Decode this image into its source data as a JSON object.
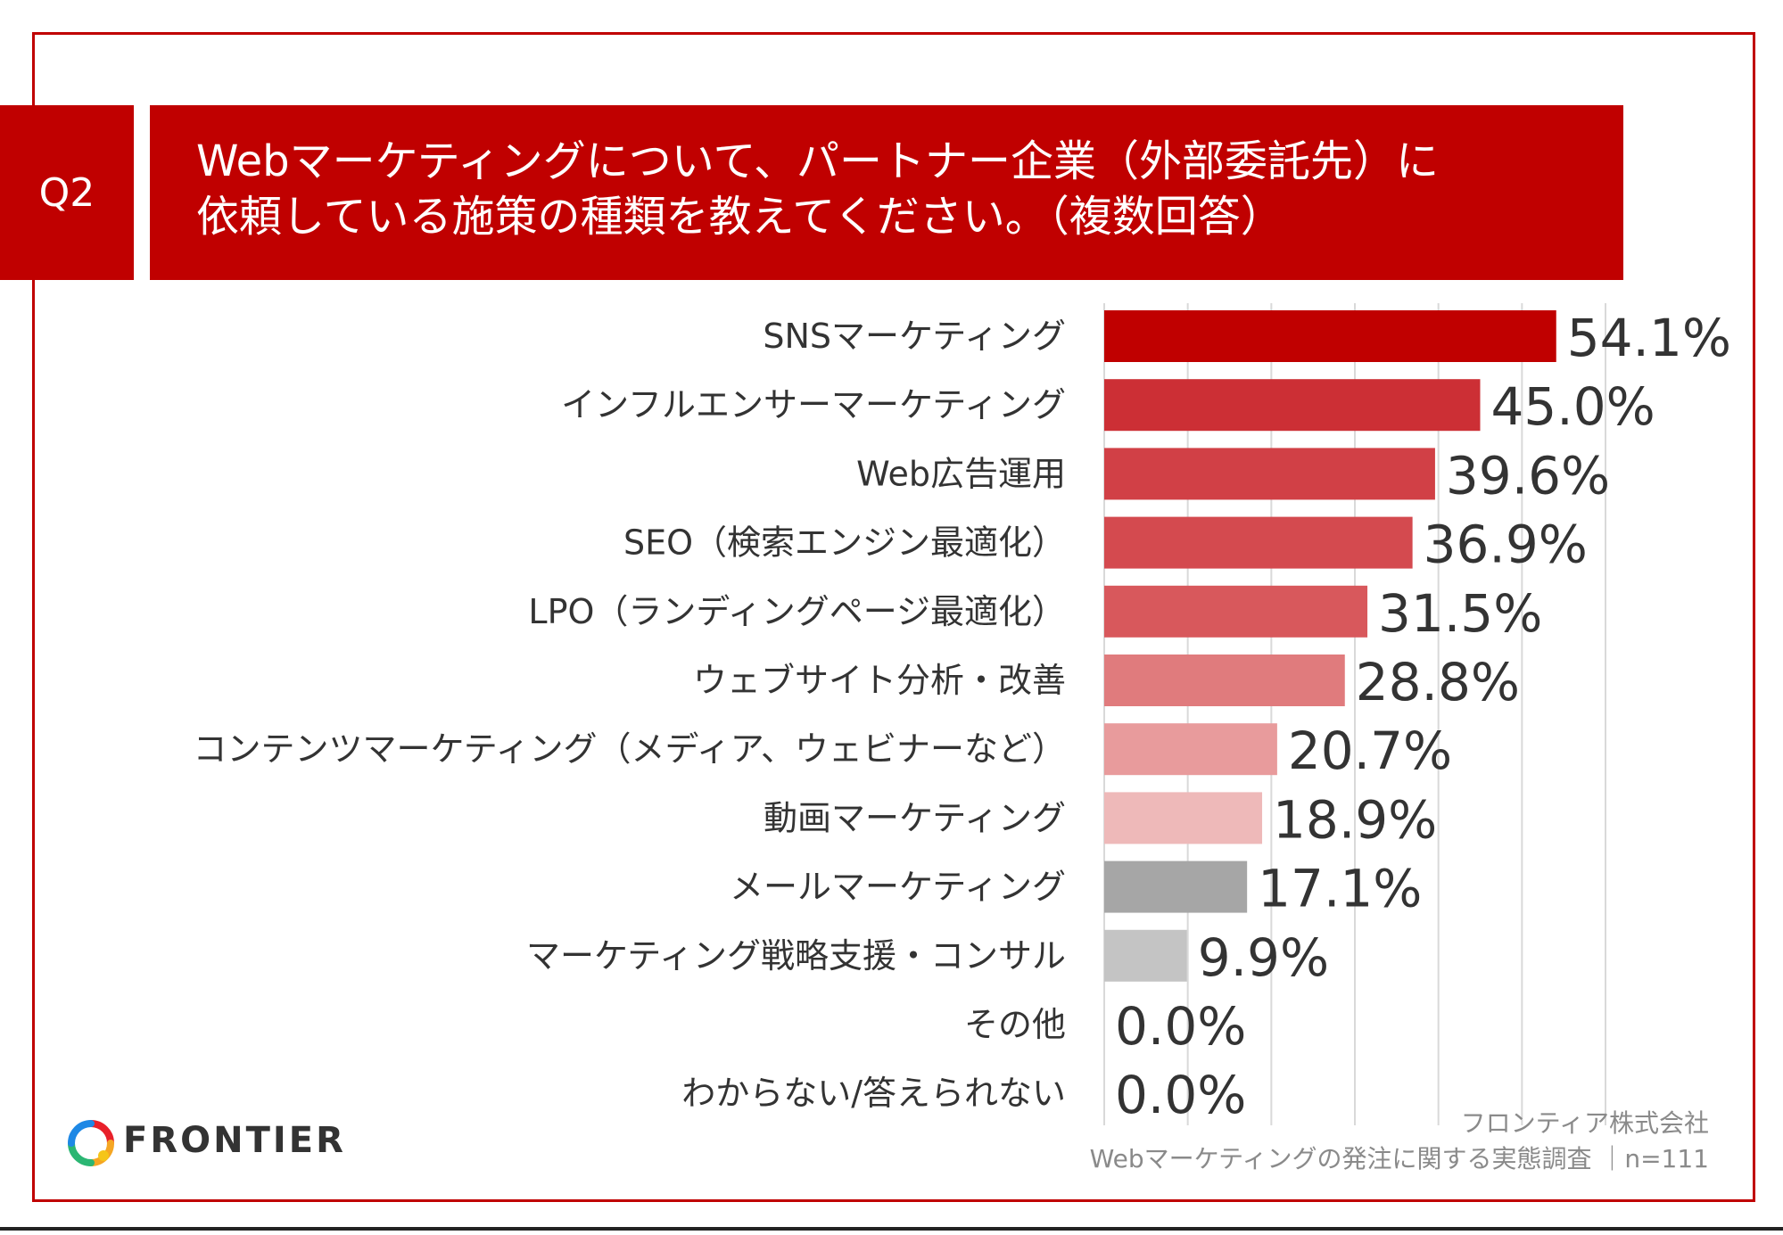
{
  "question": {
    "label": "Q2",
    "line1": "Webマーケティングについて、パートナー企業（外部委託先）に",
    "line2": "依頼している施策の種類を教えてください。（複数回答）"
  },
  "chart_data": {
    "type": "bar",
    "orientation": "horizontal",
    "categories": [
      "SNSマーケティング",
      "インフルエンサーマーケティング",
      "Web広告運用",
      "SEO（検索エンジン最適化）",
      "LPO（ランディングページ最適化）",
      "ウェブサイト分析・改善",
      "コンテンツマーケティング（メディア、ウェビナーなど）",
      "動画マーケティング",
      "メールマーケティング",
      "マーケティング戦略支援・コンサル",
      "その他",
      "わからない/答えられない"
    ],
    "values": [
      54.1,
      45.0,
      39.6,
      36.9,
      31.5,
      28.8,
      20.7,
      18.9,
      17.1,
      9.9,
      0.0,
      0.0
    ],
    "value_labels": [
      "54.1%",
      "45.0%",
      "39.6%",
      "36.9%",
      "31.5%",
      "28.8%",
      "20.7%",
      "18.9%",
      "17.1%",
      "9.9%",
      "0.0%",
      "0.0%"
    ],
    "colors": [
      "#c00000",
      "#cc2f35",
      "#d14046",
      "#d44a4f",
      "#d8585c",
      "#e07b7d",
      "#e89b9c",
      "#eeb9b9",
      "#a6a6a6",
      "#c4c4c4",
      "#c4c4c4",
      "#c4c4c4"
    ],
    "xlim": [
      0,
      60
    ],
    "grid": true,
    "gridline_values": [
      10,
      20,
      30,
      40,
      50,
      60
    ]
  },
  "footer": {
    "logo_text": "FRONTIER",
    "company": "フロンティア株式会社",
    "survey": "Webマーケティングの発注に関する実態調査 ｜n=111"
  },
  "colors": {
    "accent": "#c00000",
    "text": "#333333",
    "credit_text": "#8a8a8a"
  }
}
